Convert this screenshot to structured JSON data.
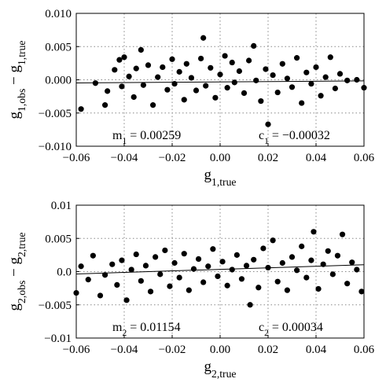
{
  "chart_data": [
    {
      "type": "scatter",
      "ylabel": [
        {
          "text": "g"
        },
        {
          "text": "1,obs",
          "sub": true
        },
        {
          "text": " − g"
        },
        {
          "text": "1,true",
          "sub": true
        }
      ],
      "xlabel": [
        {
          "text": "g"
        },
        {
          "text": "1,true",
          "sub": true
        }
      ],
      "annotations": [
        [
          {
            "text": "m"
          },
          {
            "text": "1",
            "sub": true
          },
          {
            "text": " = 0.00259"
          }
        ],
        [
          {
            "text": "c"
          },
          {
            "text": "1",
            "sub": true
          },
          {
            "text": " = −0.00032"
          }
        ]
      ],
      "fit": {
        "m": 0.00259,
        "c": -0.00032
      },
      "xlim": [
        -0.06,
        0.06
      ],
      "ylim": [
        -0.01,
        0.01
      ],
      "xticks": [
        {
          "value": -0.06,
          "label": "−0.06"
        },
        {
          "value": -0.04,
          "label": "−0.04"
        },
        {
          "value": -0.02,
          "label": "−0.02"
        },
        {
          "value": 0,
          "label": "0.00"
        },
        {
          "value": 0.02,
          "label": "0.02"
        },
        {
          "value": 0.04,
          "label": "0.04"
        },
        {
          "value": 0.06,
          "label": "0.06"
        }
      ],
      "yticks": [
        {
          "value": -0.01,
          "label": "−0.010"
        },
        {
          "value": -0.005,
          "label": "−0.005"
        },
        {
          "value": 0,
          "label": "0.000"
        },
        {
          "value": 0.005,
          "label": "0.005"
        },
        {
          "value": 0.01,
          "label": "0.010"
        }
      ],
      "grid": true,
      "color": "#000000",
      "x": [
        -0.058,
        -0.052,
        -0.048,
        -0.047,
        -0.044,
        -0.042,
        -0.041,
        -0.04,
        -0.038,
        -0.036,
        -0.035,
        -0.033,
        -0.032,
        -0.03,
        -0.028,
        -0.026,
        -0.024,
        -0.022,
        -0.02,
        -0.019,
        -0.017,
        -0.015,
        -0.014,
        -0.012,
        -0.01,
        -0.008,
        -0.007,
        -0.006,
        -0.004,
        -0.002,
        0.0,
        0.002,
        0.003,
        0.005,
        0.006,
        0.008,
        0.01,
        0.012,
        0.014,
        0.015,
        0.017,
        0.019,
        0.02,
        0.022,
        0.024,
        0.026,
        0.028,
        0.03,
        0.032,
        0.034,
        0.036,
        0.038,
        0.04,
        0.042,
        0.044,
        0.046,
        0.048,
        0.05,
        0.053,
        0.057,
        0.06
      ],
      "values": [
        -0.0044,
        -0.0005,
        -0.0038,
        -0.0017,
        0.0015,
        0.003,
        -0.001,
        0.0034,
        0.0005,
        -0.0026,
        0.0017,
        0.0045,
        -0.0008,
        0.0022,
        -0.0038,
        0.0004,
        0.0019,
        -0.0015,
        0.0031,
        -0.0006,
        0.0012,
        -0.003,
        0.0024,
        0.0003,
        -0.0016,
        0.0032,
        0.0063,
        -0.0009,
        0.0018,
        -0.0027,
        0.0008,
        0.0036,
        -0.0012,
        0.0026,
        -0.0004,
        0.0013,
        -0.002,
        0.0029,
        0.0051,
        -0.0001,
        -0.0032,
        0.0016,
        -0.0067,
        0.0007,
        -0.0019,
        0.0024,
        0.0002,
        -0.0011,
        0.0033,
        -0.0035,
        0.0011,
        -0.0006,
        0.0019,
        -0.0024,
        0.0004,
        0.0034,
        -0.0013,
        0.0009,
        -0.0001,
        0.0,
        -0.0012
      ]
    },
    {
      "type": "scatter",
      "ylabel": [
        {
          "text": "g"
        },
        {
          "text": "2,obs",
          "sub": true
        },
        {
          "text": " − g"
        },
        {
          "text": "2,true",
          "sub": true
        }
      ],
      "xlabel": [
        {
          "text": "g"
        },
        {
          "text": "2,true",
          "sub": true
        }
      ],
      "annotations": [
        [
          {
            "text": "m"
          },
          {
            "text": "2",
            "sub": true
          },
          {
            "text": " = 0.01154"
          }
        ],
        [
          {
            "text": "c"
          },
          {
            "text": "2",
            "sub": true
          },
          {
            "text": " = 0.00034"
          }
        ]
      ],
      "fit": {
        "m": 0.01154,
        "c": 0.00034
      },
      "xlim": [
        -0.06,
        0.06
      ],
      "ylim": [
        -0.01,
        0.01
      ],
      "xticks": [
        {
          "value": -0.06,
          "label": "−0.06"
        },
        {
          "value": -0.04,
          "label": "−0.04"
        },
        {
          "value": -0.02,
          "label": "−0.02"
        },
        {
          "value": 0,
          "label": "0.00"
        },
        {
          "value": 0.02,
          "label": "0.02"
        },
        {
          "value": 0.04,
          "label": "0.04"
        },
        {
          "value": 0.06,
          "label": "0.06"
        }
      ],
      "yticks": [
        {
          "value": -0.01,
          "label": "−0.01"
        },
        {
          "value": -0.005,
          "label": "−0.005"
        },
        {
          "value": 0,
          "label": "0.0"
        },
        {
          "value": 0.005,
          "label": "0.005"
        },
        {
          "value": 0.01,
          "label": "0.01"
        }
      ],
      "grid": true,
      "color": "#000000",
      "x": [
        -0.06,
        -0.058,
        -0.055,
        -0.053,
        -0.05,
        -0.048,
        -0.045,
        -0.043,
        -0.041,
        -0.039,
        -0.037,
        -0.035,
        -0.033,
        -0.031,
        -0.029,
        -0.027,
        -0.025,
        -0.023,
        -0.021,
        -0.019,
        -0.017,
        -0.015,
        -0.013,
        -0.011,
        -0.009,
        -0.007,
        -0.005,
        -0.003,
        -0.001,
        0.001,
        0.003,
        0.005,
        0.007,
        0.009,
        0.011,
        0.0125,
        0.014,
        0.016,
        0.018,
        0.02,
        0.022,
        0.024,
        0.026,
        0.028,
        0.03,
        0.032,
        0.034,
        0.036,
        0.038,
        0.039,
        0.041,
        0.043,
        0.045,
        0.047,
        0.049,
        0.051,
        0.053,
        0.055,
        0.057,
        0.059
      ],
      "values": [
        -0.0032,
        0.0008,
        -0.0012,
        0.0024,
        -0.0036,
        -0.0005,
        0.0011,
        -0.002,
        0.0017,
        -0.0043,
        0.0003,
        0.0026,
        -0.0014,
        0.0009,
        -0.003,
        0.0022,
        -0.0004,
        0.0032,
        -0.0022,
        0.0013,
        -0.0009,
        0.0027,
        -0.0028,
        0.0004,
        0.0019,
        -0.0016,
        0.0008,
        0.0034,
        -0.0007,
        0.0015,
        -0.0021,
        0.0003,
        0.0025,
        -0.0011,
        0.0009,
        -0.005,
        0.0018,
        -0.0024,
        0.0035,
        0.0006,
        0.0047,
        -0.0015,
        0.0013,
        -0.0028,
        0.0022,
        0.0002,
        0.0038,
        -0.0009,
        0.0017,
        0.006,
        -0.0026,
        0.0011,
        0.0031,
        -0.0004,
        0.0024,
        0.0056,
        -0.0018,
        0.0014,
        0.0003,
        -0.003
      ]
    }
  ]
}
